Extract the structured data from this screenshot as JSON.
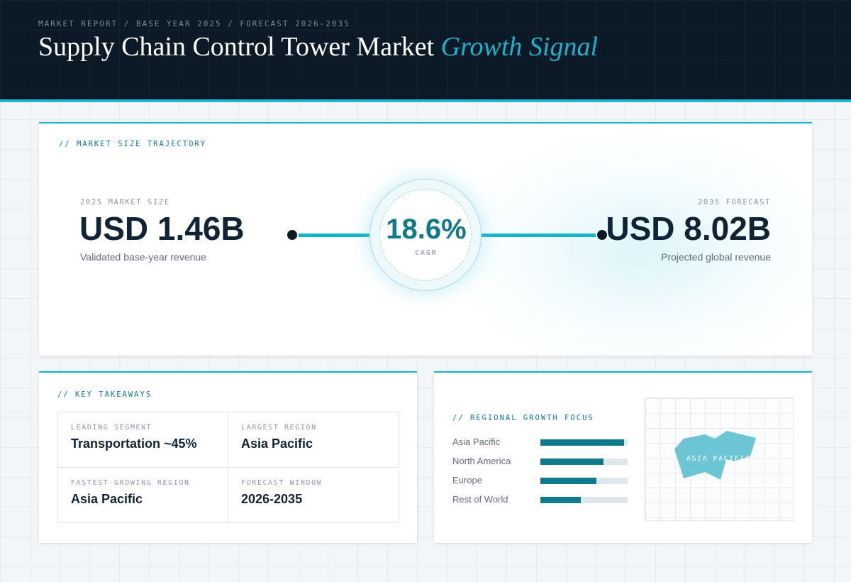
{
  "header": {
    "eyebrow": "MARKET REPORT / BASE YEAR 2025 / FORECAST 2026-2035",
    "title_main": "Supply Chain Control Tower Market",
    "title_accent": "Growth Signal"
  },
  "trajectory": {
    "label": "// MARKET SIZE TRAJECTORY",
    "start": {
      "eyebrow": "2025 MARKET SIZE",
      "value": "USD 1.46B",
      "caption": "Validated base-year revenue"
    },
    "end": {
      "eyebrow": "2035 FORECAST",
      "value": "USD 8.02B",
      "caption": "Projected global revenue"
    },
    "cagr": {
      "value": "18.6%",
      "label": "CAGR"
    }
  },
  "takeaways": {
    "label": "// KEY TAKEAWAYS",
    "items": [
      {
        "label": "LEADING SEGMENT",
        "value": "Transportation ~45%"
      },
      {
        "label": "LARGEST REGION",
        "value": "Asia Pacific"
      },
      {
        "label": "FASTEST-GROWING REGION",
        "value": "Asia Pacific"
      },
      {
        "label": "FORECAST WINDOW",
        "value": "2026-2035"
      }
    ]
  },
  "regional": {
    "label": "// REGIONAL GROWTH FOCUS",
    "bars": [
      {
        "name": "Asia Pacific",
        "level": 0.96
      },
      {
        "name": "North America",
        "level": 0.72
      },
      {
        "name": "Europe",
        "level": 0.64
      },
      {
        "name": "Rest of World",
        "level": 0.46
      }
    ],
    "map_label": "ASIA PACIFIC"
  },
  "colors": {
    "accent": "#19b3cb",
    "teal": "#0e7a8c",
    "navy": "#0b1a26",
    "map_fill": "#6cc5d4"
  }
}
